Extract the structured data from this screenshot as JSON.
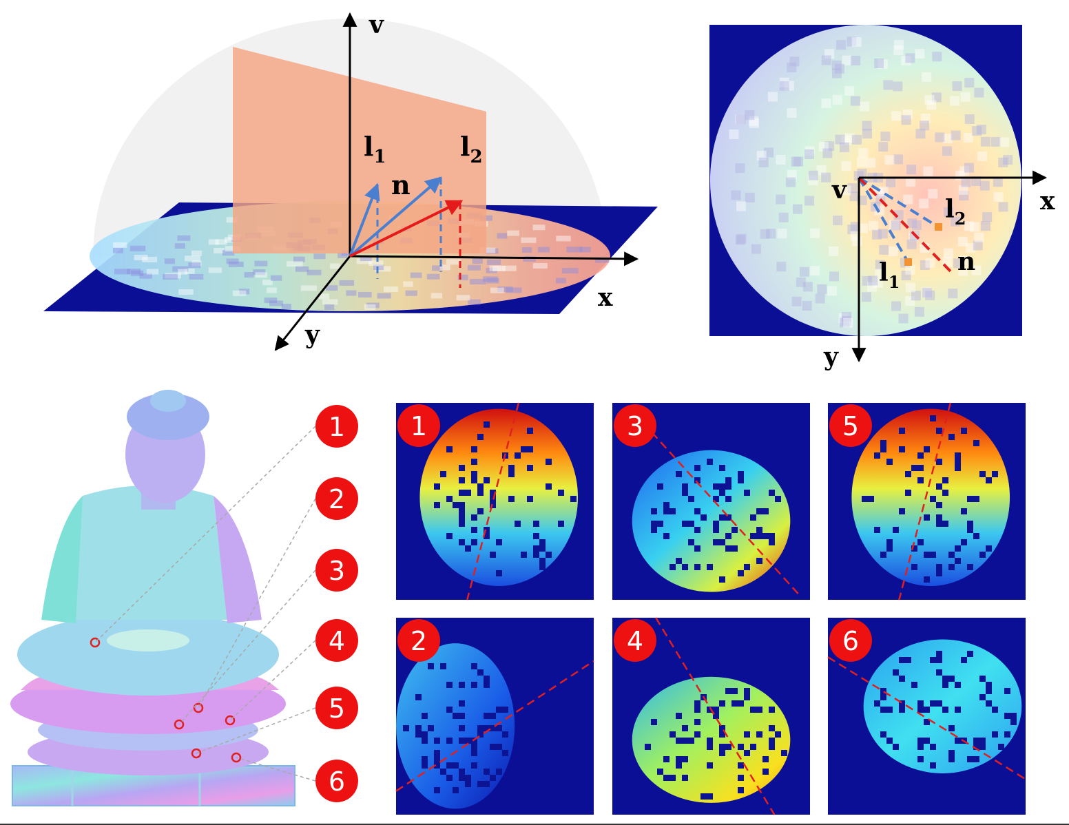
{
  "panel_3d": {
    "axis_v": "v",
    "axis_x": "x",
    "axis_y": "y",
    "vec_n": "n",
    "vec_l1_base": "l",
    "vec_l1_sub": "1",
    "vec_l2_base": "l",
    "vec_l2_sub": "2"
  },
  "panel_2d": {
    "axis_v": "v",
    "axis_x": "x",
    "axis_y": "y",
    "vec_n": "n",
    "vec_l1_base": "l",
    "vec_l1_sub": "1",
    "vec_l2_base": "l",
    "vec_l2_sub": "2"
  },
  "callouts": [
    "1",
    "2",
    "3",
    "4",
    "5",
    "6"
  ],
  "patches": [
    {
      "num": "1",
      "kind": "hot"
    },
    {
      "num": "3",
      "kind": "mid"
    },
    {
      "num": "5",
      "kind": "hot"
    },
    {
      "num": "2",
      "kind": "cold"
    },
    {
      "num": "4",
      "kind": "warm"
    },
    {
      "num": "6",
      "kind": "cyan"
    }
  ],
  "colors": {
    "plane_blue": "#0a0f96",
    "badge_red": "#ee1111",
    "dash_red": "#e02020",
    "vec_blue": "#4a7fd0",
    "normal_red": "#e51a1a",
    "plane_orange": "#f4a582"
  }
}
